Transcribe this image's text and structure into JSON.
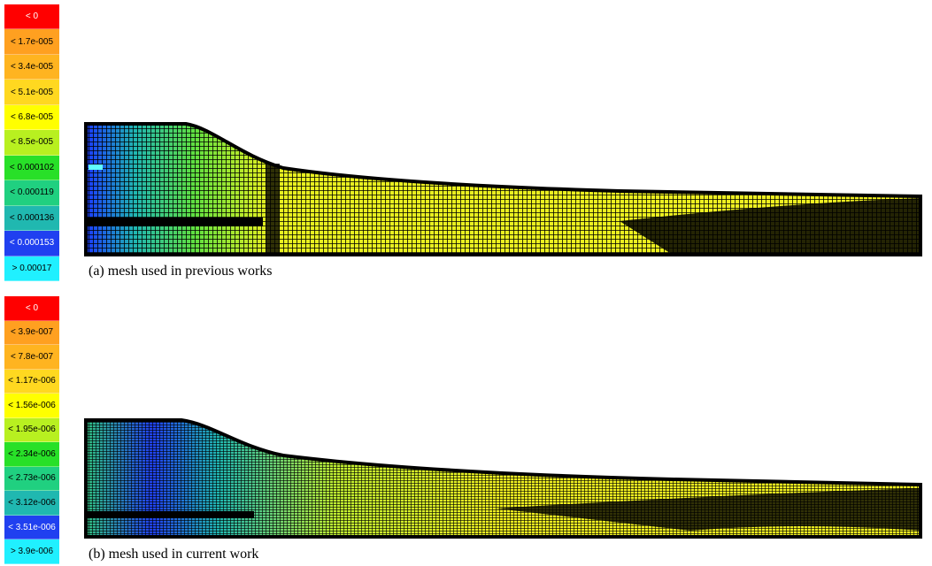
{
  "panels": [
    {
      "legend": [
        {
          "label": "< 0",
          "color": "#ff0000"
        },
        {
          "label": "< 1.7e-005",
          "color": "#ffa020"
        },
        {
          "label": "< 3.4e-005",
          "color": "#ffb420"
        },
        {
          "label": "< 5.1e-005",
          "color": "#ffd820"
        },
        {
          "label": "< 6.8e-005",
          "color": "#ffff00"
        },
        {
          "label": "< 8.5e-005",
          "color": "#b8f020"
        },
        {
          "label": "< 0.000102",
          "color": "#28e028"
        },
        {
          "label": "< 0.000119",
          "color": "#20d080"
        },
        {
          "label": "< 0.000136",
          "color": "#20b8b0"
        },
        {
          "label": "< 0.000153",
          "color": "#2040f0"
        },
        {
          "label": "> 0.00017",
          "color": "#20f0ff"
        }
      ],
      "caption": "(a) mesh used in previous works"
    },
    {
      "legend": [
        {
          "label": "< 0",
          "color": "#ff0000"
        },
        {
          "label": "< 3.9e-007",
          "color": "#ffa020"
        },
        {
          "label": "< 7.8e-007",
          "color": "#ffb420"
        },
        {
          "label": "< 1.17e-006",
          "color": "#ffd820"
        },
        {
          "label": "< 1.56e-006",
          "color": "#ffff00"
        },
        {
          "label": "< 1.95e-006",
          "color": "#b8f020"
        },
        {
          "label": "< 2.34e-006",
          "color": "#28e028"
        },
        {
          "label": "< 2.73e-006",
          "color": "#20d080"
        },
        {
          "label": "< 3.12e-006",
          "color": "#20b8b0"
        },
        {
          "label": "< 3.51e-006",
          "color": "#2040f0"
        },
        {
          "label": "> 3.9e-006",
          "color": "#20f0ff"
        }
      ],
      "caption": "(b) mesh used in current work"
    }
  ]
}
